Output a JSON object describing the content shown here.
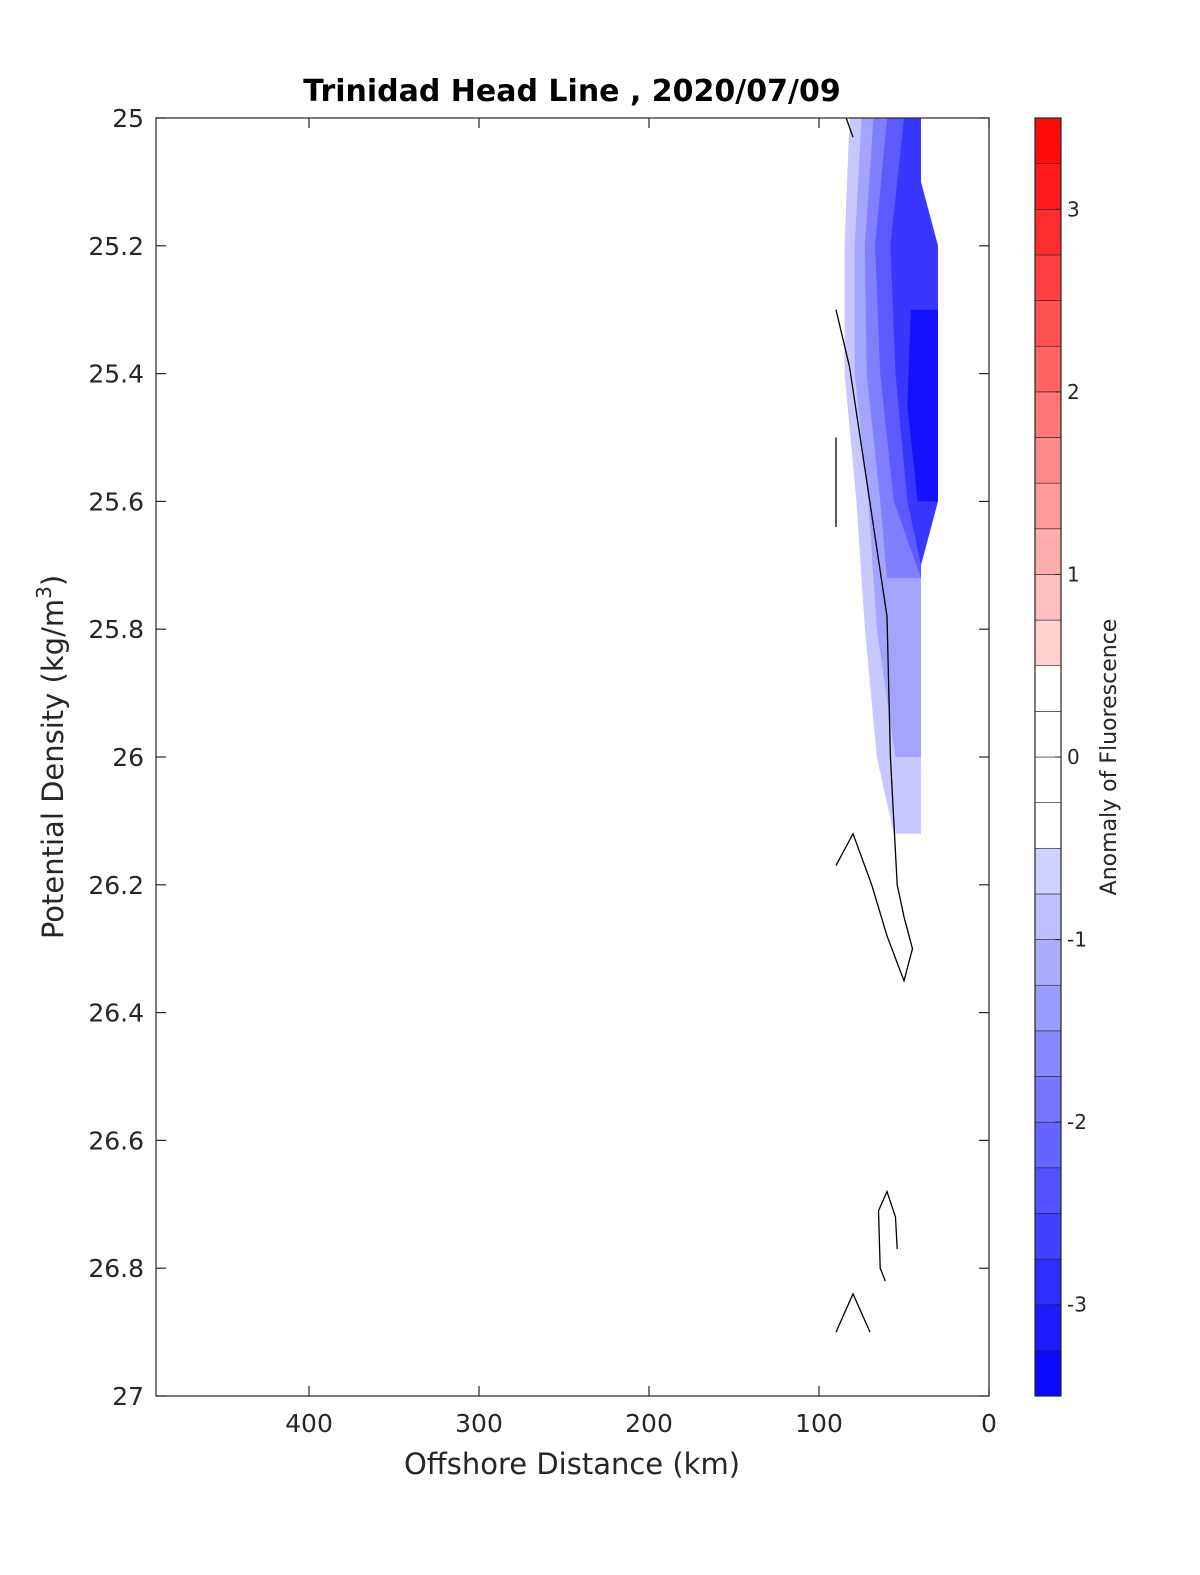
{
  "chart_data": {
    "type": "heatmap",
    "subtype": "filled-contour section",
    "title": "Trinidad Head Line , 2020/07/09",
    "xlabel": "Offshore Distance (km)",
    "ylabel": "Potential Density (kg/m",
    "ylabel_sup": "3",
    "ylabel_close": ")",
    "xlim": [
      490,
      0
    ],
    "x_reversed": true,
    "ylim": [
      25,
      27
    ],
    "y_reversed": true,
    "xticks": [
      400,
      300,
      200,
      100,
      0
    ],
    "yticks": [
      25,
      25.2,
      25.4,
      25.6,
      25.8,
      26,
      26.2,
      26.4,
      26.6,
      26.8,
      27
    ],
    "ytick_labels": [
      "25",
      "25.2",
      "25.4",
      "25.6",
      "25.8",
      "26",
      "26.2",
      "26.4",
      "26.6",
      "26.8",
      "27"
    ],
    "colorbar": {
      "label": "Anomaly of Fluorescence",
      "range": [
        -3.5,
        3.5
      ],
      "step": 0.25,
      "ticks": [
        -3,
        -2,
        -1,
        0,
        1,
        2,
        3
      ],
      "negative_color": "#0000ff",
      "zero_color": "#ffffff",
      "positive_color": "#ff0000"
    },
    "anomaly_region_bands": [
      {
        "level": -0.5,
        "points": [
          [
            82,
            25.0
          ],
          [
            85,
            25.2
          ],
          [
            85,
            25.4
          ],
          [
            78,
            25.6
          ],
          [
            73,
            25.8
          ],
          [
            66,
            26.0
          ],
          [
            56,
            26.12
          ],
          [
            40,
            26.12
          ],
          [
            40,
            25.0
          ]
        ]
      },
      {
        "level": -1.0,
        "points": [
          [
            75,
            25.0
          ],
          [
            79,
            25.2
          ],
          [
            79,
            25.4
          ],
          [
            71,
            25.6
          ],
          [
            66,
            25.8
          ],
          [
            55,
            26.0
          ],
          [
            40,
            26.0
          ],
          [
            40,
            25.0
          ]
        ]
      },
      {
        "level": -1.5,
        "points": [
          [
            68,
            25.0
          ],
          [
            73,
            25.2
          ],
          [
            72,
            25.4
          ],
          [
            64,
            25.6
          ],
          [
            60,
            25.72
          ],
          [
            40,
            25.72
          ],
          [
            40,
            25.0
          ]
        ]
      },
      {
        "level": -2.0,
        "points": [
          [
            60,
            25.0
          ],
          [
            67,
            25.2
          ],
          [
            64,
            25.4
          ],
          [
            56,
            25.6
          ],
          [
            40,
            25.72
          ],
          [
            40,
            25.0
          ]
        ]
      },
      {
        "level": -2.5,
        "points": [
          [
            50,
            25.0
          ],
          [
            58,
            25.2
          ],
          [
            55,
            25.4
          ],
          [
            48,
            25.6
          ],
          [
            40,
            25.7
          ],
          [
            30,
            25.6
          ],
          [
            30,
            25.2
          ],
          [
            40,
            25.1
          ],
          [
            40,
            25.0
          ]
        ]
      },
      {
        "level": -3.0,
        "points": [
          [
            46,
            25.3
          ],
          [
            30,
            25.3
          ],
          [
            30,
            25.6
          ],
          [
            42,
            25.6
          ],
          [
            48,
            25.45
          ]
        ]
      }
    ],
    "zero_contours": [
      {
        "points": [
          [
            84,
            25.0
          ],
          [
            80,
            25.03
          ]
        ]
      },
      {
        "points": [
          [
            90,
            25.3
          ],
          [
            82,
            25.39
          ],
          [
            69,
            25.62
          ],
          [
            60,
            25.78
          ],
          [
            58,
            26.0
          ],
          [
            54,
            26.2
          ],
          [
            50,
            26.25
          ],
          [
            45,
            26.3
          ],
          [
            50,
            26.35
          ],
          [
            60,
            26.28
          ],
          [
            69,
            26.2
          ],
          [
            80,
            26.12
          ],
          [
            90,
            26.17
          ]
        ]
      },
      {
        "points": [
          [
            54,
            26.77
          ],
          [
            55,
            26.72
          ],
          [
            60,
            26.68
          ],
          [
            65,
            26.71
          ],
          [
            64,
            26.8
          ],
          [
            61,
            26.82
          ]
        ]
      },
      {
        "points": [
          [
            90,
            26.9
          ],
          [
            80,
            26.84
          ],
          [
            70,
            26.9
          ]
        ]
      },
      {
        "points": [
          [
            90,
            25.5
          ],
          [
            90,
            25.64
          ]
        ]
      }
    ]
  }
}
